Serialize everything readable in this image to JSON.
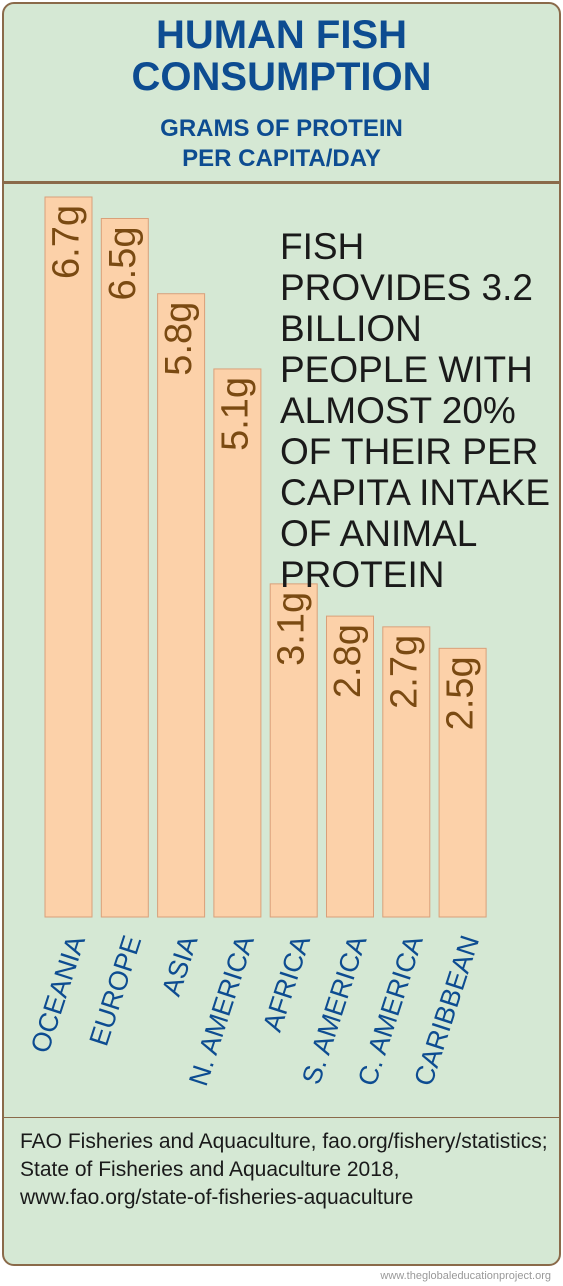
{
  "chart_data": {
    "type": "bar",
    "title": "HUMAN FISH CONSUMPTION",
    "subtitle": "GRAMS OF PROTEIN PER CAPITA/DAY",
    "annotation": "FISH PROVIDES 3.2 BILLION PEOPLE WITH ALMOST 20% OF THEIR PER CAPITA INTAKE OF ANIMAL PROTEIN",
    "categories": [
      "OCEANIA",
      "EUROPE",
      "ASIA",
      "N. AMERICA",
      "AFRICA",
      "S. AMERICA",
      "C. AMERICA",
      "CARIBBEAN"
    ],
    "values": [
      6.7,
      6.5,
      5.8,
      5.1,
      3.1,
      2.8,
      2.7,
      2.5
    ],
    "value_labels": [
      "6.7g",
      "6.5g",
      "5.8g",
      "5.1g",
      "3.1g",
      "2.8g",
      "2.7g",
      "2.5g"
    ],
    "color": "#fcd1a9",
    "source": "FAO Fisheries and Aquaculture, fao.org/fishery/statistics; State of Fisheries and Aquaculture 2018, www.fao.org/state-of-fisheries-aquaculture",
    "credit": "www.theglobaleducationproject.org"
  }
}
